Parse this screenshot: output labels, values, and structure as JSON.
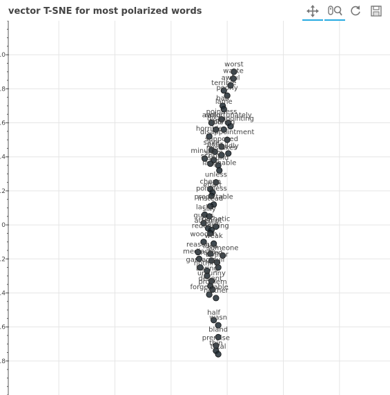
{
  "title": "vector T-SNE for most polarized words",
  "toolbar": {
    "tools": [
      {
        "name": "pan-tool",
        "icon": "move-arrows-icon",
        "active": true
      },
      {
        "name": "wheel-zoom-tool",
        "icon": "wheel-zoom-icon",
        "active": true
      },
      {
        "name": "reset-tool",
        "icon": "reset-icon",
        "active": false
      },
      {
        "name": "save-tool",
        "icon": "save-icon",
        "active": false
      }
    ]
  },
  "colors": {
    "point": "#1f2a33",
    "grid": "#e5e5e5",
    "text": "#444444",
    "accent": "#26aae1"
  },
  "chart_data": {
    "type": "scatter",
    "title": "vector T-SNE for most polarized words",
    "xlabel": "",
    "ylabel": "",
    "xlim": [
      -3.9,
      2.9
    ],
    "ylim": [
      -1.2,
      1.0
    ],
    "grid": true,
    "yticks": [
      -1.0,
      -0.8,
      -0.6,
      -0.4,
      -0.2,
      0.0,
      0.2,
      0.4,
      0.6,
      0.8
    ],
    "ytick_labels": [
      "1.0",
      ".8",
      ".6",
      ".4",
      ".2",
      "0",
      ".2",
      ".4",
      ".6",
      ".8"
    ],
    "points": [
      {
        "label": "worst",
        "x": 0.12,
        "y": -0.9
      },
      {
        "label": "waste",
        "x": 0.11,
        "y": -0.86
      },
      {
        "label": "awful",
        "x": 0.06,
        "y": -0.82
      },
      {
        "label": "terrible",
        "x": -0.06,
        "y": -0.79
      },
      {
        "label": "poorly",
        "x": 0.0,
        "y": -0.76
      },
      {
        "label": "bad",
        "x": -0.08,
        "y": -0.7
      },
      {
        "label": "lame",
        "x": -0.06,
        "y": -0.68
      },
      {
        "label": "pointless",
        "x": -0.1,
        "y": -0.62
      },
      {
        "label": "unfortunately",
        "x": 0.02,
        "y": -0.6
      },
      {
        "label": "avoid",
        "x": -0.28,
        "y": -0.6
      },
      {
        "label": "disappointing",
        "x": 0.06,
        "y": -0.58
      },
      {
        "label": "falls",
        "x": -0.2,
        "y": -0.56
      },
      {
        "label": "boring",
        "x": -0.06,
        "y": -0.56
      },
      {
        "label": "horrible",
        "x": -0.32,
        "y": -0.52
      },
      {
        "label": "disappointment",
        "x": 0.0,
        "y": -0.5
      },
      {
        "label": "supposed",
        "x": -0.1,
        "y": -0.46
      },
      {
        "label": "save",
        "x": -0.28,
        "y": -0.44
      },
      {
        "label": "poor",
        "x": -0.22,
        "y": -0.43
      },
      {
        "label": "mildly",
        "x": 0.02,
        "y": -0.42
      },
      {
        "label": "mistakes",
        "x": -0.1,
        "y": -0.41
      },
      {
        "label": "minutes",
        "x": -0.4,
        "y": -0.39
      },
      {
        "label": "seem",
        "x": -0.24,
        "y": -0.38
      },
      {
        "label": "script",
        "x": -0.3,
        "y": -0.36
      },
      {
        "label": "sound",
        "x": -0.16,
        "y": -0.35
      },
      {
        "label": "laughable",
        "x": -0.14,
        "y": -0.32
      },
      {
        "label": "unless",
        "x": -0.2,
        "y": -0.25
      },
      {
        "label": "cheap",
        "x": -0.3,
        "y": -0.21
      },
      {
        "label": "effort",
        "x": -0.26,
        "y": -0.19
      },
      {
        "label": "pointless",
        "x": -0.28,
        "y": -0.17
      },
      {
        "label": "predictable",
        "x": -0.24,
        "y": -0.12
      },
      {
        "label": "instead",
        "x": -0.3,
        "y": -0.11
      },
      {
        "label": "lacks",
        "x": -0.4,
        "y": -0.06
      },
      {
        "label": "silly",
        "x": -0.32,
        "y": -0.05
      },
      {
        "label": "guess",
        "x": -0.42,
        "y": -0.01
      },
      {
        "label": "pathetic",
        "x": -0.2,
        "y": 0.01
      },
      {
        "label": "attempt",
        "x": -0.34,
        "y": 0.02
      },
      {
        "label": "fails",
        "x": -0.28,
        "y": 0.03
      },
      {
        "label": "redeeming",
        "x": -0.3,
        "y": 0.05
      },
      {
        "label": "wooden",
        "x": -0.42,
        "y": 0.1
      },
      {
        "label": "weak",
        "x": -0.24,
        "y": 0.11
      },
      {
        "label": "reason",
        "x": -0.52,
        "y": 0.16
      },
      {
        "label": "idea",
        "x": -0.3,
        "y": 0.17
      },
      {
        "label": "someone",
        "x": -0.08,
        "y": 0.18
      },
      {
        "label": "mediocre",
        "x": -0.5,
        "y": 0.2
      },
      {
        "label": "ruined",
        "x": -0.28,
        "y": 0.21
      },
      {
        "label": "bother",
        "x": -0.18,
        "y": 0.22
      },
      {
        "label": "garbage",
        "x": -0.48,
        "y": 0.25
      },
      {
        "label": "dull",
        "x": -0.16,
        "y": 0.25
      },
      {
        "label": "nothing",
        "x": -0.36,
        "y": 0.27
      },
      {
        "label": "boring",
        "x": -0.36,
        "y": 0.3
      },
      {
        "label": "unfunny",
        "x": -0.28,
        "y": 0.33
      },
      {
        "label": "decent",
        "x": -0.3,
        "y": 0.36
      },
      {
        "label": "problem",
        "x": -0.26,
        "y": 0.38
      },
      {
        "label": "forgettable",
        "x": -0.32,
        "y": 0.41
      },
      {
        "label": "neither",
        "x": -0.2,
        "y": 0.43
      },
      {
        "label": "half",
        "x": -0.24,
        "y": 0.56
      },
      {
        "label": "wasn",
        "x": -0.16,
        "y": 0.59
      },
      {
        "label": "bland",
        "x": -0.16,
        "y": 0.66
      },
      {
        "label": "premise",
        "x": -0.2,
        "y": 0.71
      },
      {
        "label": "thin",
        "x": -0.2,
        "y": 0.74
      },
      {
        "label": "total",
        "x": -0.16,
        "y": 0.76
      }
    ]
  }
}
